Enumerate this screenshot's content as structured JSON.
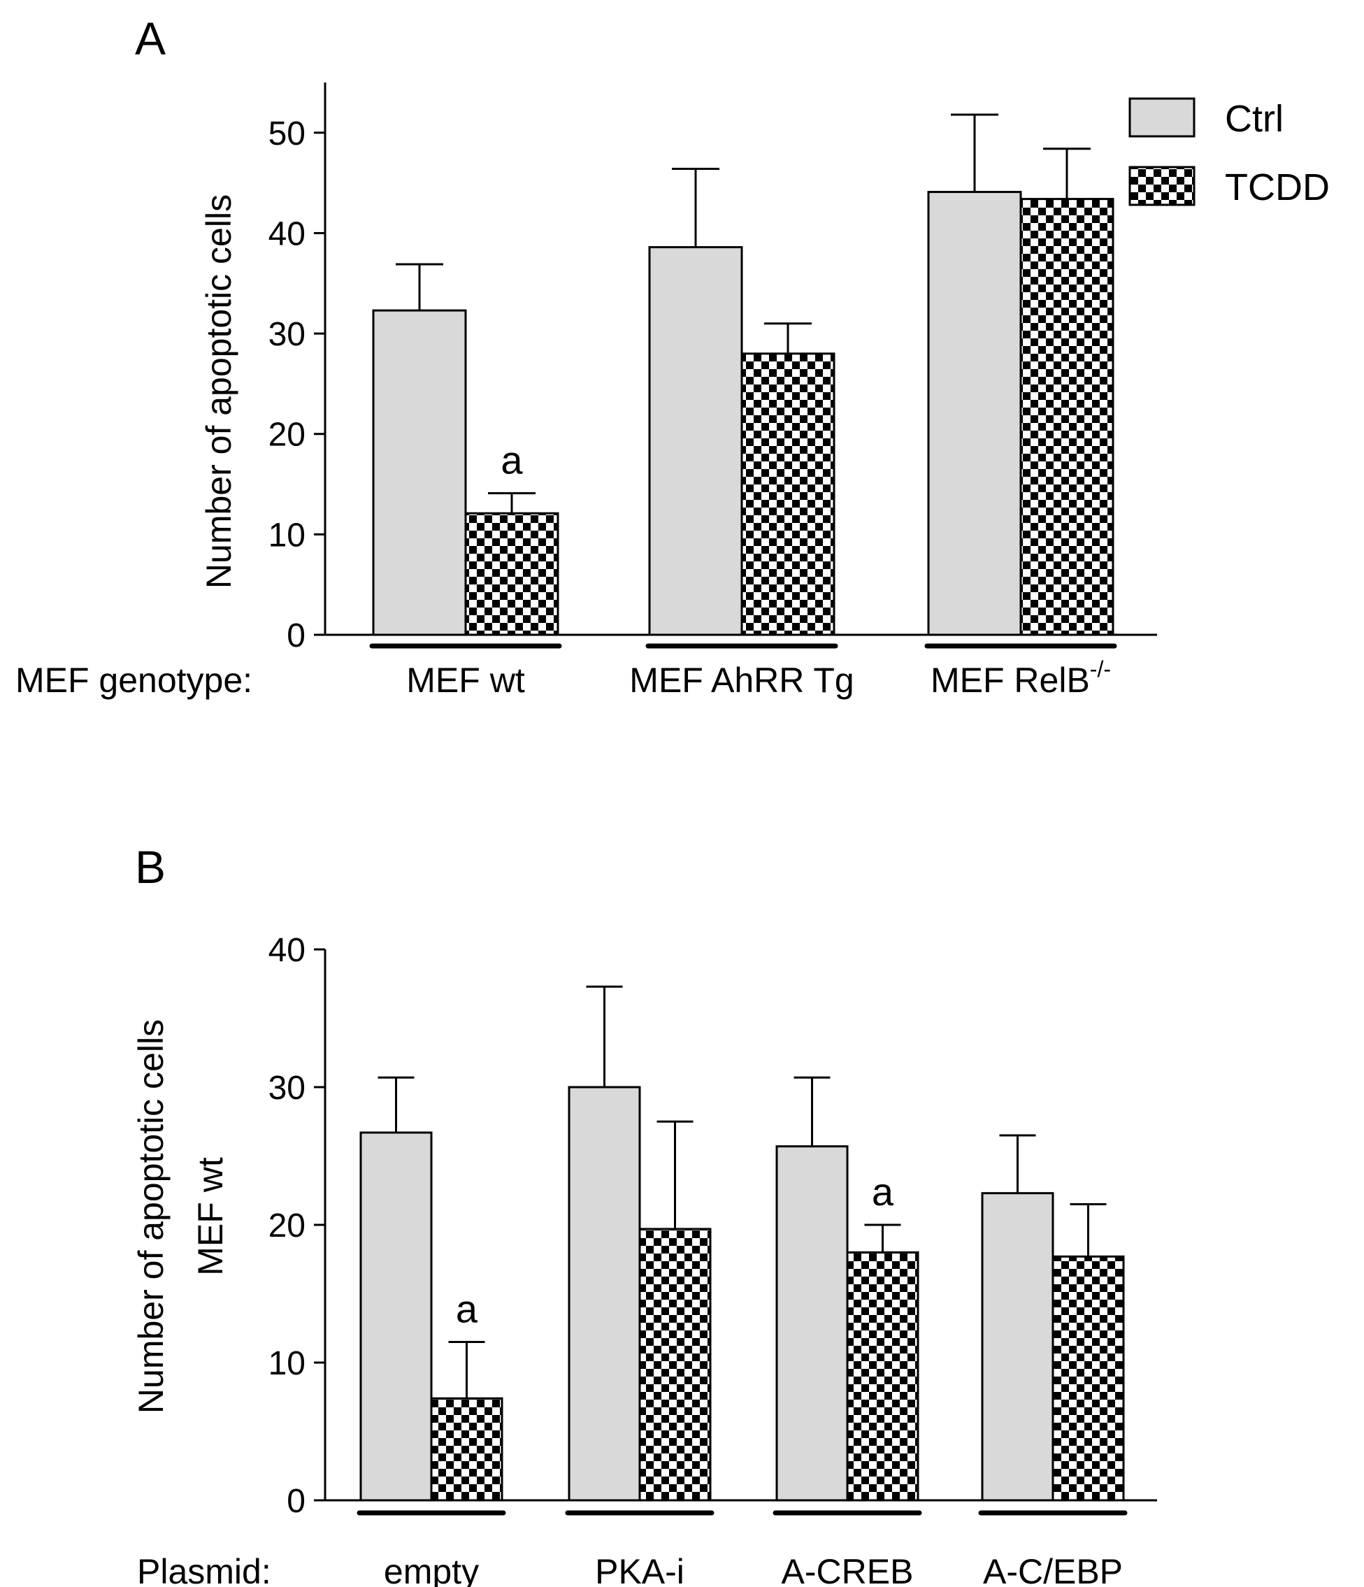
{
  "chart_data": [
    {
      "type": "bar",
      "panel_label": "A",
      "ylabel": "Number of apoptotic cells",
      "xlabel_prefix": "MEF genotype:",
      "ylim": [
        0,
        55
      ],
      "yticks": [
        0,
        10,
        20,
        30,
        40,
        50
      ],
      "categories": [
        "MEF wt",
        "MEF AhRR Tg",
        "MEF RelB"
      ],
      "category_superscripts": [
        "",
        "",
        "-/-"
      ],
      "series": [
        {
          "name": "Ctrl",
          "values": [
            32.3,
            38.6,
            44.1
          ],
          "errors": [
            4.6,
            7.8,
            7.7
          ],
          "annotations": [
            "",
            "",
            ""
          ]
        },
        {
          "name": "TCDD",
          "values": [
            12.1,
            28.0,
            43.4
          ],
          "errors": [
            2.0,
            3.0,
            5.0
          ],
          "annotations": [
            "a",
            "",
            ""
          ]
        }
      ],
      "legend": {
        "position": "top-right",
        "entries": [
          "Ctrl",
          "TCDD"
        ]
      }
    },
    {
      "type": "bar",
      "panel_label": "B",
      "ylabel_lines": [
        "Number of apoptotic cells",
        "MEF wt"
      ],
      "xlabel_prefix": "Plasmid:",
      "ylim": [
        0,
        40
      ],
      "yticks": [
        0,
        10,
        20,
        30,
        40
      ],
      "categories": [
        "empty",
        "PKA-i",
        "A-CREB",
        "A-C/EBP"
      ],
      "category_superscripts": [
        "",
        "",
        "",
        ""
      ],
      "series": [
        {
          "name": "Ctrl",
          "values": [
            26.7,
            30.0,
            25.7,
            22.3
          ],
          "errors": [
            4.0,
            7.3,
            5.0,
            4.2
          ],
          "annotations": [
            "",
            "",
            "",
            ""
          ]
        },
        {
          "name": "TCDD",
          "values": [
            7.4,
            19.7,
            18.0,
            17.7
          ],
          "errors": [
            4.1,
            7.8,
            2.0,
            3.8
          ],
          "annotations": [
            "a",
            "",
            "a",
            ""
          ]
        }
      ]
    }
  ]
}
